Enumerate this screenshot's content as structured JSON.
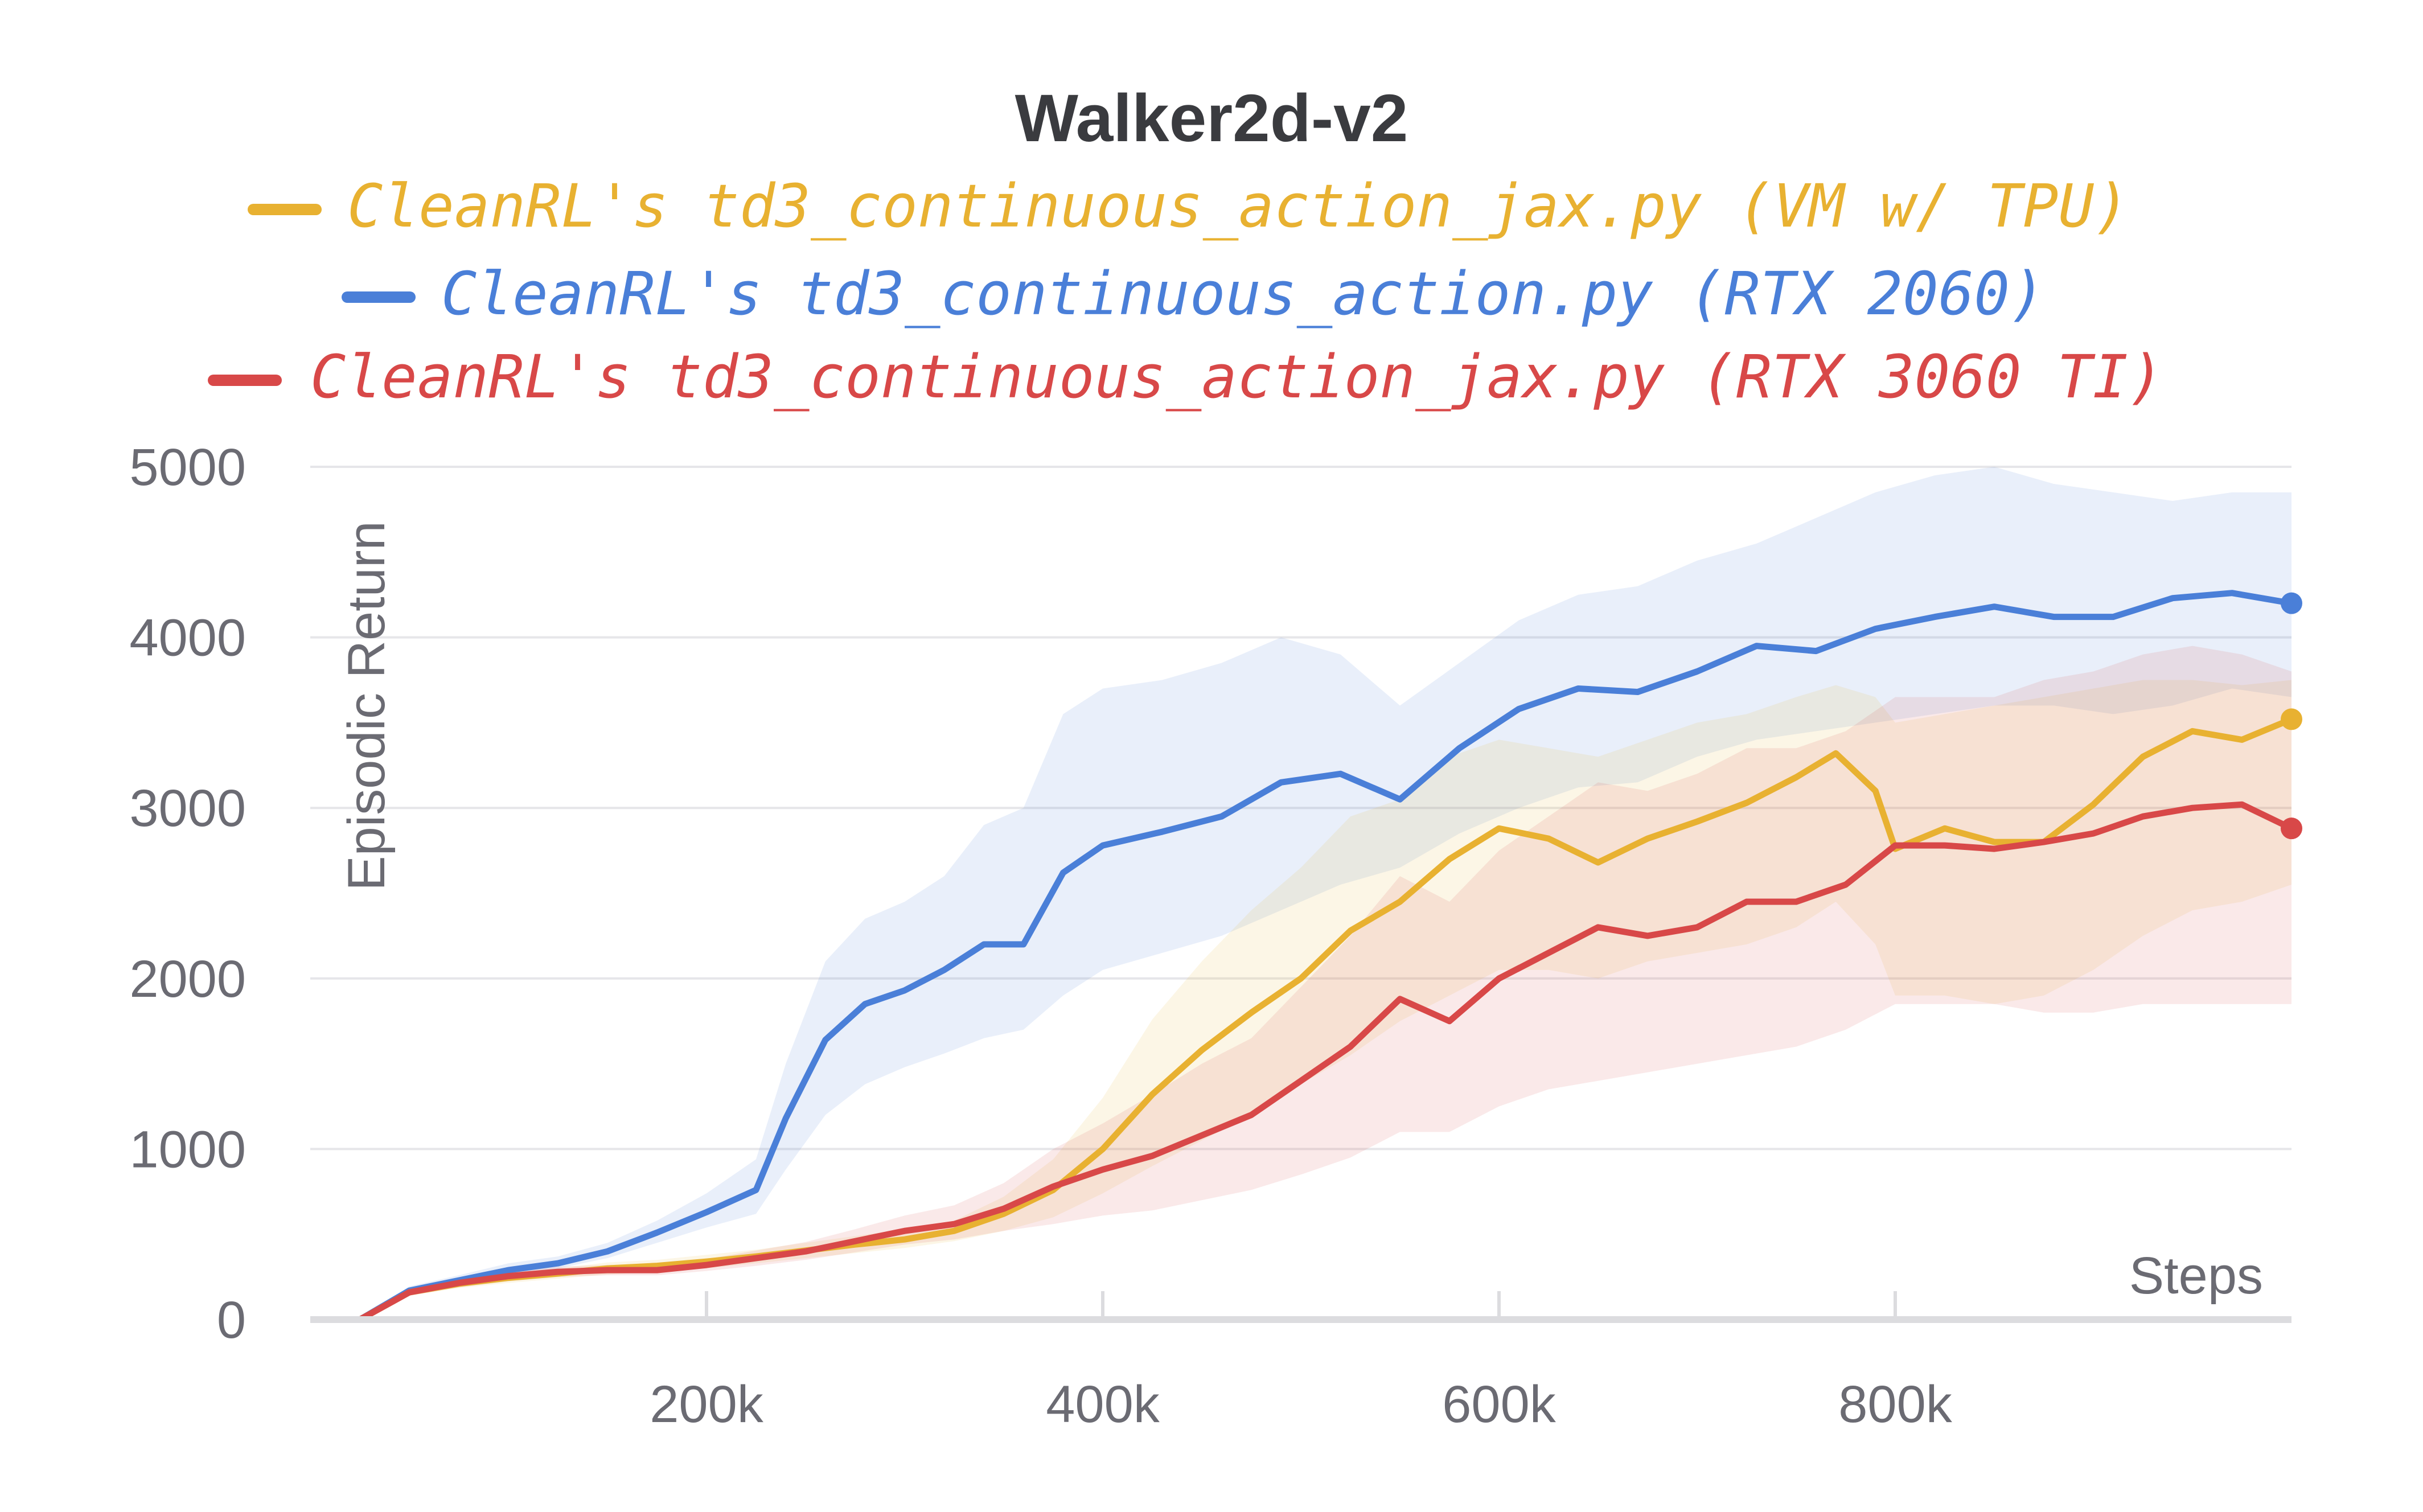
{
  "chart_data": {
    "type": "line",
    "title": "Walker2d-v2",
    "xlabel": "Steps",
    "ylabel": "Episodic Return",
    "xlim": [
      0,
      1000000
    ],
    "ylim": [
      0,
      5000
    ],
    "x_ticks": [
      200000,
      400000,
      600000,
      800000
    ],
    "x_tick_labels": [
      "200k",
      "400k",
      "600k",
      "800k"
    ],
    "y_ticks": [
      0,
      1000,
      2000,
      3000,
      4000,
      5000
    ],
    "y_tick_labels": [
      "0",
      "1000",
      "2000",
      "3000",
      "4000",
      "5000"
    ],
    "grid": true,
    "legend_position": "top-center",
    "series": [
      {
        "name": "CleanRL's td3_continuous_action_jax.py (VM w/ TPU)",
        "color": "#e8b131",
        "x": [
          25000,
          50000,
          75000,
          100000,
          125000,
          150000,
          175000,
          200000,
          225000,
          250000,
          275000,
          300000,
          325000,
          350000,
          375000,
          400000,
          425000,
          450000,
          475000,
          500000,
          525000,
          550000,
          575000,
          600000,
          625000,
          650000,
          675000,
          700000,
          725000,
          750000,
          770000,
          790000,
          800000,
          825000,
          850000,
          875000,
          900000,
          925000,
          950000,
          975000,
          1000000
        ],
        "y": [
          0,
          160,
          210,
          245,
          270,
          300,
          315,
          340,
          370,
          405,
          440,
          470,
          520,
          620,
          760,
          1000,
          1320,
          1580,
          1800,
          2000,
          2280,
          2450,
          2700,
          2880,
          2820,
          2680,
          2820,
          2920,
          3030,
          3180,
          3320,
          3100,
          2760,
          2880,
          2800,
          2800,
          3020,
          3300,
          3450,
          3400,
          3520
        ],
        "lower": [
          0,
          140,
          185,
          215,
          240,
          265,
          280,
          300,
          330,
          360,
          390,
          420,
          460,
          520,
          600,
          740,
          900,
          1050,
          1200,
          1380,
          1550,
          1750,
          1900,
          2050,
          2050,
          2000,
          2100,
          2150,
          2200,
          2300,
          2450,
          2200,
          1900,
          1900,
          1850,
          1900,
          2050,
          2250,
          2400,
          2450,
          2550
        ],
        "upper": [
          0,
          180,
          235,
          275,
          300,
          335,
          350,
          380,
          410,
          450,
          490,
          530,
          580,
          720,
          940,
          1300,
          1760,
          2100,
          2400,
          2650,
          2950,
          3050,
          3300,
          3400,
          3350,
          3300,
          3400,
          3500,
          3550,
          3650,
          3720,
          3650,
          3500,
          3550,
          3600,
          3650,
          3700,
          3750,
          3750,
          3720,
          3750
        ]
      },
      {
        "name": "CleanRL's td3_continuous_action.py (RTX 2060)",
        "color": "#4a7fd8",
        "x": [
          25000,
          50000,
          75000,
          100000,
          125000,
          150000,
          175000,
          200000,
          225000,
          240000,
          260000,
          280000,
          300000,
          320000,
          340000,
          360000,
          380000,
          400000,
          430000,
          460000,
          490000,
          520000,
          550000,
          580000,
          610000,
          640000,
          670000,
          700000,
          730000,
          760000,
          790000,
          820000,
          850000,
          880000,
          910000,
          940000,
          970000,
          1000000
        ],
        "y": [
          0,
          170,
          230,
          290,
          330,
          400,
          510,
          630,
          760,
          1180,
          1640,
          1850,
          1930,
          2050,
          2200,
          2200,
          2620,
          2780,
          2860,
          2950,
          3150,
          3200,
          3050,
          3350,
          3580,
          3700,
          3680,
          3800,
          3950,
          3920,
          4050,
          4120,
          4180,
          4120,
          4120,
          4230,
          4260,
          4200
        ],
        "lower": [
          0,
          150,
          205,
          260,
          300,
          360,
          450,
          540,
          620,
          880,
          1200,
          1380,
          1480,
          1560,
          1650,
          1700,
          1900,
          2050,
          2150,
          2250,
          2400,
          2550,
          2650,
          2850,
          3000,
          3120,
          3150,
          3300,
          3400,
          3450,
          3500,
          3550,
          3600,
          3600,
          3550,
          3600,
          3700,
          3650
        ],
        "upper": [
          0,
          195,
          260,
          330,
          370,
          450,
          580,
          740,
          940,
          1500,
          2100,
          2350,
          2450,
          2600,
          2900,
          3000,
          3550,
          3700,
          3750,
          3850,
          4000,
          3900,
          3600,
          3850,
          4100,
          4250,
          4300,
          4450,
          4550,
          4700,
          4850,
          4950,
          5000,
          4900,
          4850,
          4800,
          4850,
          4850
        ]
      },
      {
        "name": "CleanRL's td3_continuous_action_jax.py (RTX 3060 TI)",
        "color": "#d84848",
        "x": [
          25000,
          50000,
          75000,
          100000,
          125000,
          150000,
          175000,
          200000,
          225000,
          250000,
          275000,
          300000,
          325000,
          350000,
          375000,
          400000,
          425000,
          450000,
          475000,
          500000,
          525000,
          550000,
          575000,
          600000,
          625000,
          650000,
          675000,
          700000,
          725000,
          750000,
          775000,
          800000,
          825000,
          850000,
          875000,
          900000,
          925000,
          950000,
          975000,
          1000000
        ],
        "y": [
          0,
          160,
          215,
          255,
          280,
          290,
          290,
          320,
          360,
          400,
          460,
          520,
          560,
          650,
          780,
          880,
          960,
          1080,
          1200,
          1400,
          1600,
          1880,
          1750,
          2000,
          2150,
          2300,
          2250,
          2300,
          2450,
          2450,
          2550,
          2780,
          2780,
          2760,
          2800,
          2850,
          2950,
          3000,
          3020,
          2880
        ],
        "lower": [
          0,
          140,
          190,
          225,
          250,
          260,
          260,
          285,
          315,
          350,
          395,
          440,
          470,
          520,
          560,
          610,
          640,
          700,
          760,
          850,
          950,
          1100,
          1100,
          1250,
          1350,
          1400,
          1450,
          1500,
          1550,
          1600,
          1700,
          1850,
          1850,
          1850,
          1800,
          1800,
          1850,
          1850,
          1850,
          1850
        ],
        "upper": [
          0,
          180,
          240,
          285,
          310,
          320,
          325,
          355,
          405,
          455,
          530,
          610,
          670,
          800,
          1000,
          1150,
          1320,
          1500,
          1650,
          1950,
          2250,
          2600,
          2450,
          2750,
          2950,
          3150,
          3100,
          3200,
          3350,
          3350,
          3450,
          3650,
          3650,
          3650,
          3750,
          3800,
          3900,
          3950,
          3900,
          3800
        ]
      }
    ]
  }
}
